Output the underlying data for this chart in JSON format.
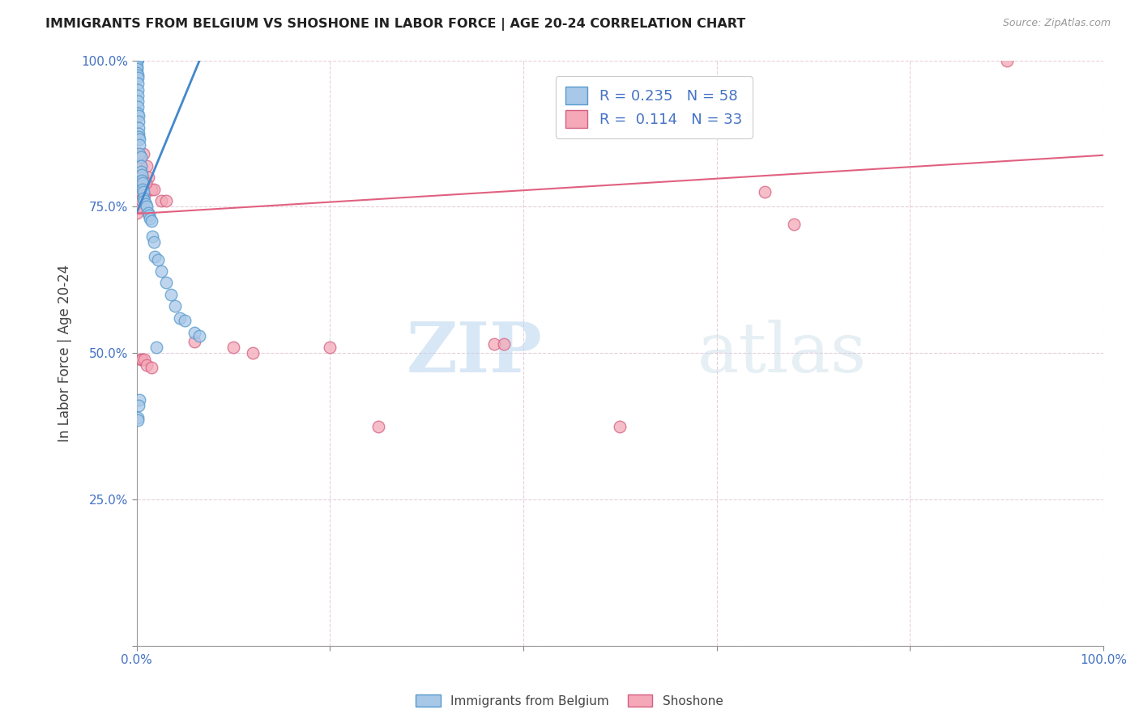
{
  "title": "IMMIGRANTS FROM BELGIUM VS SHOSHONE IN LABOR FORCE | AGE 20-24 CORRELATION CHART",
  "source": "Source: ZipAtlas.com",
  "ylabel": "In Labor Force | Age 20-24",
  "xlim": [
    0.0,
    1.0
  ],
  "ylim": [
    0.0,
    1.0
  ],
  "xticks": [
    0.0,
    0.2,
    0.4,
    0.6,
    0.8,
    1.0
  ],
  "yticks": [
    0.0,
    0.25,
    0.5,
    0.75,
    1.0
  ],
  "xticklabels": [
    "0.0%",
    "",
    "",
    "",
    "",
    "100.0%"
  ],
  "yticklabels": [
    "",
    "25.0%",
    "50.0%",
    "75.0%",
    "100.0%"
  ],
  "legend_label1": "Immigrants from Belgium",
  "legend_label2": "Shoshone",
  "R1": 0.235,
  "N1": 58,
  "R2": 0.114,
  "N2": 33,
  "color_blue_fill": "#a8c8e8",
  "color_blue_edge": "#5599cc",
  "color_pink_fill": "#f4a8b8",
  "color_pink_edge": "#d46080",
  "color_blue_line": "#4488cc",
  "color_pink_line": "#e06080",
  "watermark_zip": "ZIP",
  "watermark_atlas": "atlas",
  "blue_x": [
    0.0,
    0.0,
    0.0,
    0.0,
    0.0,
    0.0,
    0.0,
    0.0,
    0.0,
    0.001,
    0.001,
    0.001,
    0.001,
    0.001,
    0.001,
    0.001,
    0.001,
    0.002,
    0.002,
    0.002,
    0.002,
    0.002,
    0.003,
    0.003,
    0.003,
    0.004,
    0.004,
    0.004,
    0.005,
    0.005,
    0.006,
    0.006,
    0.007,
    0.007,
    0.008,
    0.009,
    0.01,
    0.012,
    0.013,
    0.014,
    0.015,
    0.016,
    0.018,
    0.019,
    0.022,
    0.025,
    0.03,
    0.035,
    0.04,
    0.045,
    0.05,
    0.06,
    0.065,
    0.02,
    0.003,
    0.002,
    0.001,
    0.001
  ],
  "blue_y": [
    1.0,
    1.0,
    1.0,
    1.0,
    1.0,
    1.0,
    0.99,
    0.985,
    0.978,
    0.975,
    0.97,
    0.96,
    0.95,
    0.94,
    0.93,
    0.92,
    0.91,
    0.905,
    0.895,
    0.885,
    0.875,
    0.87,
    0.865,
    0.855,
    0.84,
    0.835,
    0.82,
    0.81,
    0.805,
    0.795,
    0.79,
    0.78,
    0.775,
    0.765,
    0.76,
    0.755,
    0.75,
    0.74,
    0.735,
    0.73,
    0.725,
    0.7,
    0.69,
    0.665,
    0.66,
    0.64,
    0.62,
    0.6,
    0.58,
    0.56,
    0.555,
    0.535,
    0.53,
    0.51,
    0.42,
    0.41,
    0.39,
    0.385
  ],
  "pink_x": [
    0.0,
    0.001,
    0.001,
    0.002,
    0.003,
    0.004,
    0.005,
    0.006,
    0.007,
    0.008,
    0.01,
    0.012,
    0.015,
    0.018,
    0.025,
    0.03,
    0.06,
    0.1,
    0.12,
    0.2,
    0.25,
    0.37,
    0.38,
    0.5,
    0.65,
    0.68,
    0.9,
    0.009,
    0.004,
    0.005,
    0.008,
    0.01,
    0.015
  ],
  "pink_y": [
    0.74,
    0.84,
    0.78,
    0.8,
    0.75,
    0.82,
    0.76,
    0.8,
    0.84,
    0.77,
    0.82,
    0.8,
    0.78,
    0.78,
    0.76,
    0.76,
    0.52,
    0.51,
    0.5,
    0.51,
    0.375,
    0.515,
    0.515,
    0.375,
    0.775,
    0.72,
    1.0,
    0.79,
    0.49,
    0.49,
    0.49,
    0.48,
    0.475
  ],
  "blue_trend_x": [
    0.0,
    0.065
  ],
  "blue_trend_y": [
    0.74,
    1.0
  ],
  "pink_trend_x": [
    0.0,
    1.0
  ],
  "pink_trend_y": [
    0.738,
    0.838
  ]
}
